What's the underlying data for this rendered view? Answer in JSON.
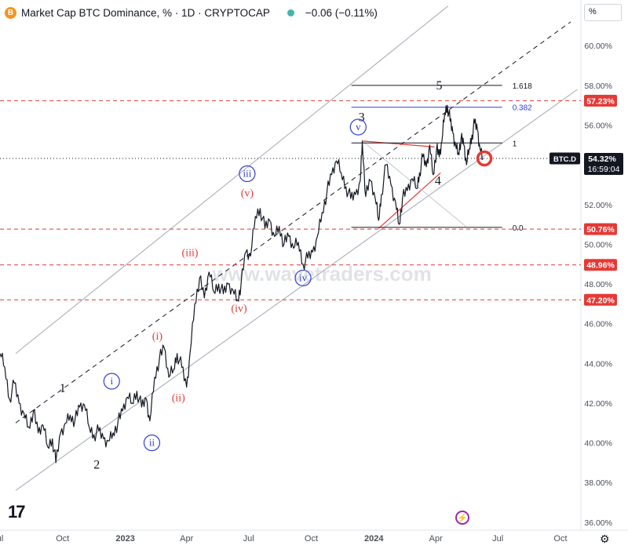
{
  "header": {
    "icon_letter": "B",
    "title": "Market Cap BTC Dominance, % · 1D · CRYPTOCAP",
    "change": "−0.06 (−0.11%)"
  },
  "scale_mode": "%",
  "watermark": "www.wavetraders.com",
  "colors": {
    "price": "#131722",
    "channel": "#b2b5be",
    "red": "#e53935",
    "blue": "#2f3fd6",
    "label_bg_red": "#e53935",
    "axis_text": "#4a4e58"
  },
  "chart_data": {
    "type": "line",
    "title": "",
    "symbol": "BTC.D",
    "xlabel": "",
    "ylabel": "",
    "ylim": [
      35.6,
      62.3
    ],
    "x_range": [
      "2022-07-01",
      "2024-10-31"
    ],
    "y_ticks": [
      36,
      38,
      40,
      42,
      44,
      46,
      48,
      50,
      52,
      54,
      56,
      58,
      60
    ],
    "x_ticks": [
      {
        "date": "2022-07-01",
        "label": "ul"
      },
      {
        "date": "2022-10-01",
        "label": "Oct"
      },
      {
        "date": "2023-01-01",
        "label": "2023",
        "bold": true
      },
      {
        "date": "2023-04-01",
        "label": "Apr"
      },
      {
        "date": "2023-07-01",
        "label": "Jul"
      },
      {
        "date": "2023-10-01",
        "label": "Oct"
      },
      {
        "date": "2024-01-01",
        "label": "2024",
        "bold": true
      },
      {
        "date": "2024-04-01",
        "label": "Apr"
      },
      {
        "date": "2024-07-01",
        "label": "Jul"
      },
      {
        "date": "2024-10-01",
        "label": "Oct"
      }
    ],
    "series": [
      {
        "points": [
          [
            "2022-07-01",
            44.5
          ],
          [
            "2022-07-08",
            43.8
          ],
          [
            "2022-07-15",
            42.2
          ],
          [
            "2022-07-22",
            43.0
          ],
          [
            "2022-07-29",
            42.0
          ],
          [
            "2022-08-05",
            41.5
          ],
          [
            "2022-08-12",
            40.8
          ],
          [
            "2022-08-19",
            41.6
          ],
          [
            "2022-08-26",
            40.5
          ],
          [
            "2022-09-02",
            40.9
          ],
          [
            "2022-09-09",
            39.8
          ],
          [
            "2022-09-16",
            40.2
          ],
          [
            "2022-09-21",
            39.0
          ],
          [
            "2022-09-28",
            40.5
          ],
          [
            "2022-10-05",
            41.0
          ],
          [
            "2022-10-12",
            41.4
          ],
          [
            "2022-10-19",
            41.1
          ],
          [
            "2022-10-26",
            41.8
          ],
          [
            "2022-11-02",
            41.9
          ],
          [
            "2022-11-09",
            40.8
          ],
          [
            "2022-11-16",
            40.4
          ],
          [
            "2022-11-23",
            40.6
          ],
          [
            "2022-11-30",
            40.2
          ],
          [
            "2022-12-07",
            40.1
          ],
          [
            "2022-12-14",
            40.5
          ],
          [
            "2022-12-21",
            41.0
          ],
          [
            "2022-12-28",
            41.6
          ],
          [
            "2023-01-04",
            42.3
          ],
          [
            "2023-01-11",
            42.0
          ],
          [
            "2023-01-18",
            42.6
          ],
          [
            "2023-01-25",
            41.8
          ],
          [
            "2023-02-01",
            42.2
          ],
          [
            "2023-02-06",
            41.1
          ],
          [
            "2023-02-13",
            43.3
          ],
          [
            "2023-02-20",
            44.2
          ],
          [
            "2023-02-27",
            44.8
          ],
          [
            "2023-03-06",
            43.3
          ],
          [
            "2023-03-13",
            43.7
          ],
          [
            "2023-03-18",
            44.5
          ],
          [
            "2023-03-25",
            43.8
          ],
          [
            "2023-04-01",
            42.8
          ],
          [
            "2023-04-06",
            44.5
          ],
          [
            "2023-04-13",
            47.0
          ],
          [
            "2023-04-20",
            48.3
          ],
          [
            "2023-04-27",
            47.3
          ],
          [
            "2023-05-04",
            48.6
          ],
          [
            "2023-05-11",
            47.6
          ],
          [
            "2023-05-18",
            48.0
          ],
          [
            "2023-05-25",
            47.5
          ],
          [
            "2023-06-01",
            48.0
          ],
          [
            "2023-06-08",
            47.7
          ],
          [
            "2023-06-15",
            47.2
          ],
          [
            "2023-06-20",
            48.0
          ],
          [
            "2023-06-27",
            49.6
          ],
          [
            "2023-07-04",
            49.4
          ],
          [
            "2023-07-11",
            51.4
          ],
          [
            "2023-07-18",
            51.8
          ],
          [
            "2023-07-25",
            50.8
          ],
          [
            "2023-08-01",
            51.2
          ],
          [
            "2023-08-08",
            50.4
          ],
          [
            "2023-08-15",
            50.9
          ],
          [
            "2023-08-22",
            50.0
          ],
          [
            "2023-08-29",
            50.4
          ],
          [
            "2023-09-05",
            49.8
          ],
          [
            "2023-09-12",
            50.1
          ],
          [
            "2023-09-19",
            49.0
          ],
          [
            "2023-09-26",
            49.3
          ],
          [
            "2023-10-03",
            49.6
          ],
          [
            "2023-10-10",
            50.4
          ],
          [
            "2023-10-17",
            51.6
          ],
          [
            "2023-10-24",
            52.6
          ],
          [
            "2023-10-31",
            53.5
          ],
          [
            "2023-11-07",
            54.2
          ],
          [
            "2023-11-14",
            53.6
          ],
          [
            "2023-11-21",
            52.9
          ],
          [
            "2023-11-28",
            52.3
          ],
          [
            "2023-12-05",
            52.5
          ],
          [
            "2023-12-12",
            53.2
          ],
          [
            "2023-12-15",
            55.2
          ],
          [
            "2023-12-20",
            52.4
          ],
          [
            "2023-12-27",
            53.2
          ],
          [
            "2024-01-03",
            52.3
          ],
          [
            "2024-01-08",
            51.2
          ],
          [
            "2024-01-12",
            52.5
          ],
          [
            "2024-01-19",
            54.0
          ],
          [
            "2024-01-26",
            53.0
          ],
          [
            "2024-02-02",
            52.1
          ],
          [
            "2024-02-07",
            51.0
          ],
          [
            "2024-02-12",
            52.3
          ],
          [
            "2024-02-19",
            52.7
          ],
          [
            "2024-02-26",
            53.3
          ],
          [
            "2024-03-04",
            52.8
          ],
          [
            "2024-03-08",
            53.6
          ],
          [
            "2024-03-13",
            54.4
          ],
          [
            "2024-03-18",
            53.9
          ],
          [
            "2024-03-23",
            55.0
          ],
          [
            "2024-03-28",
            53.5
          ],
          [
            "2024-04-02",
            54.8
          ],
          [
            "2024-04-06",
            54.4
          ],
          [
            "2024-04-10",
            55.2
          ],
          [
            "2024-04-14",
            56.6
          ],
          [
            "2024-04-18",
            57.0
          ],
          [
            "2024-04-22",
            56.2
          ],
          [
            "2024-04-26",
            55.6
          ],
          [
            "2024-04-30",
            55.0
          ],
          [
            "2024-05-04",
            54.6
          ],
          [
            "2024-05-08",
            55.3
          ],
          [
            "2024-05-12",
            55.0
          ],
          [
            "2024-05-16",
            54.0
          ],
          [
            "2024-05-20",
            54.8
          ],
          [
            "2024-05-24",
            55.5
          ],
          [
            "2024-05-28",
            56.1
          ],
          [
            "2024-06-01",
            55.8
          ],
          [
            "2024-06-05",
            54.8
          ],
          [
            "2024-06-09",
            54.32
          ]
        ]
      }
    ],
    "price_label": {
      "symbol": "BTC.D",
      "value": "54.32%",
      "countdown": "16:59:04",
      "y": 54.32
    },
    "hline_labels": [
      {
        "y": 57.23,
        "text": "57.23%"
      },
      {
        "y": 50.76,
        "text": "50.76%"
      },
      {
        "y": 48.96,
        "text": "48.96%"
      },
      {
        "y": 47.2,
        "text": "47.20%"
      }
    ],
    "fib_levels": [
      {
        "y": 58.0,
        "text": "1.618",
        "color": "#131722"
      },
      {
        "y": 56.9,
        "text": "0.382",
        "color": "#2f3fd6"
      },
      {
        "y": 55.1,
        "text": "1",
        "color": "#131722"
      },
      {
        "y": 50.85,
        "text": "0.0",
        "color": "#131722"
      }
    ],
    "annotations": [
      {
        "text": "1",
        "x": "2022-10-01",
        "y": 42.75,
        "color": "black",
        "style": "plain"
      },
      {
        "text": "2",
        "x": "2022-11-20",
        "y": 38.9,
        "color": "black",
        "style": "plain"
      },
      {
        "text": "3",
        "x": "2023-12-14",
        "y": 56.4,
        "color": "black",
        "style": "plain"
      },
      {
        "text": "4",
        "x": "2024-04-04",
        "y": 53.2,
        "color": "black",
        "style": "plain"
      },
      {
        "text": "5",
        "x": "2024-04-06",
        "y": 58.0,
        "color": "black",
        "style": "plain"
      },
      {
        "text": "i",
        "x": "2022-12-12",
        "y": 43.1,
        "color": "blue",
        "style": "circle"
      },
      {
        "text": "ii",
        "x": "2023-02-09",
        "y": 40.0,
        "color": "blue",
        "style": "circle"
      },
      {
        "text": "iii",
        "x": "2023-06-29",
        "y": 53.55,
        "color": "blue",
        "style": "circle"
      },
      {
        "text": "iv",
        "x": "2023-09-19",
        "y": 48.3,
        "color": "blue",
        "style": "circle"
      },
      {
        "text": "v",
        "x": "2023-12-09",
        "y": 55.9,
        "color": "blue",
        "style": "circle"
      },
      {
        "text": "(i)",
        "x": "2023-02-17",
        "y": 45.4,
        "color": "red",
        "style": "plain"
      },
      {
        "text": "(ii)",
        "x": "2023-03-20",
        "y": 42.3,
        "color": "red",
        "style": "plain"
      },
      {
        "text": "(iii)",
        "x": "2023-04-06",
        "y": 49.6,
        "color": "red",
        "style": "plain"
      },
      {
        "text": "(iv)",
        "x": "2023-06-17",
        "y": 46.8,
        "color": "red",
        "style": "plain"
      },
      {
        "text": "(v)",
        "x": "2023-06-29",
        "y": 52.6,
        "color": "red",
        "style": "plain"
      }
    ]
  }
}
